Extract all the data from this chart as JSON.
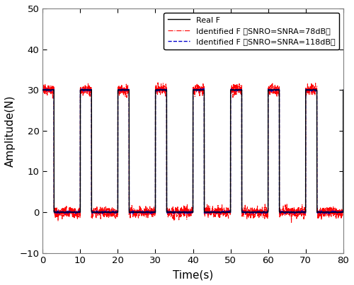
{
  "title": "",
  "xlabel": "Time(s)",
  "ylabel": "Amplitude(N)",
  "xlim": [
    0,
    80
  ],
  "ylim": [
    -10,
    50
  ],
  "yticks": [
    -10,
    0,
    10,
    20,
    30,
    40,
    50
  ],
  "xticks": [
    0,
    10,
    20,
    30,
    40,
    50,
    60,
    70,
    80
  ],
  "real_color": "#000000",
  "id78_color": "#ff0000",
  "id118_color": "#0000cc",
  "pulse_amplitude": 30,
  "pulse_period": 10,
  "pulse_on_duration": 3.0,
  "pulse_off_start": 0.0,
  "total_time": 80,
  "num_samples": 16000,
  "legend_labels": [
    "Real F",
    "Identified F （SNRO=SNRA=78dB）",
    "Identified F （SNRO=SNRA=118dB）"
  ],
  "noise_78_std": 0.25,
  "noise_118_std": 0.04,
  "figsize": [
    5.0,
    4.03
  ],
  "dpi": 100
}
